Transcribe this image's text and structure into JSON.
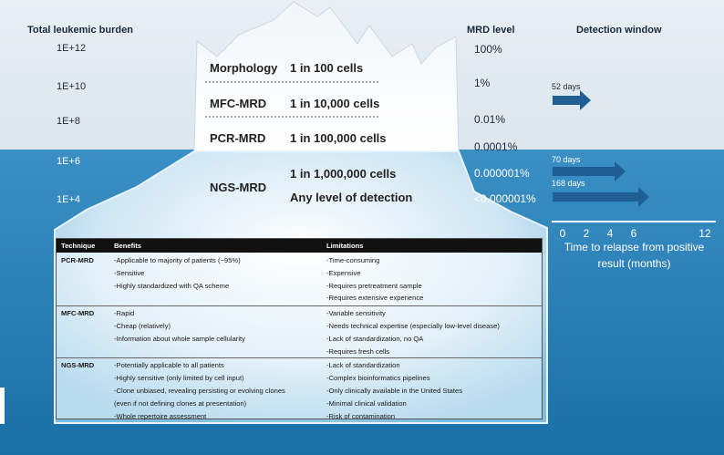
{
  "left_axis": {
    "title": "Total leukemic burden",
    "levels": [
      "1E+12",
      "1E+10",
      "1E+8",
      "1E+6",
      "1E+4"
    ]
  },
  "iceberg": {
    "rows": [
      {
        "method": "Morphology",
        "sensitivity": "1 in 100 cells"
      },
      {
        "method": "MFC-MRD",
        "sensitivity": "1 in 10,000 cells"
      },
      {
        "method": "PCR-MRD",
        "sensitivity": "1 in 100,000 cells"
      },
      {
        "method": "NGS-MRD",
        "sensitivity": "1 in 1,000,000 cells",
        "note": "Any level of detection"
      }
    ]
  },
  "mrd_level": {
    "title": "MRD level",
    "values": [
      "100%",
      "1%",
      "0.01%",
      "0.0001%",
      "0.000001%",
      "<0.000001%"
    ]
  },
  "detection": {
    "title": "Detection window",
    "arrows": [
      "52 days",
      "70 days",
      "168 days"
    ],
    "ticks": [
      0,
      2,
      4,
      6,
      12
    ],
    "axis_label": "Time to relapse from positive result (months)"
  },
  "table": {
    "header": [
      "Technique",
      "Benefits",
      "Limitations"
    ],
    "rows": [
      {
        "technique": "PCR-MRD",
        "benefits": [
          "-Applicable to majority of patients (~95%)",
          "-Sensitive",
          "-Highly standardized with QA scheme"
        ],
        "limitations": [
          "-Time-consuming",
          "-Expensive",
          "-Requires pretreatment sample",
          "-Requires extensive experience"
        ]
      },
      {
        "technique": "MFC-MRD",
        "benefits": [
          "-Rapid",
          "-Cheap (relatively)",
          "-Information about whole sample cellularity"
        ],
        "limitations": [
          "-Variable sensitivity",
          "-Needs technical expertise (especially low-level disease)",
          "-Lack of standardization, no QA",
          "-Requires fresh cells"
        ]
      },
      {
        "technique": "NGS-MRD",
        "benefits": [
          "-Potentially applicable to all patients",
          "-Highly sensitive (only limited by cell input)",
          "-Clone unbiased, revealing persisting or evolving clones",
          "(even if not defining clones at presentation)",
          "-Whole repertoire assessment"
        ],
        "limitations": [
          "-Lack of standardization",
          "-Complex bioinformatics pipelines",
          "-Only clinically available in the United States",
          "-Minimal clinical validation",
          "-Risk of contamination"
        ]
      }
    ]
  }
}
